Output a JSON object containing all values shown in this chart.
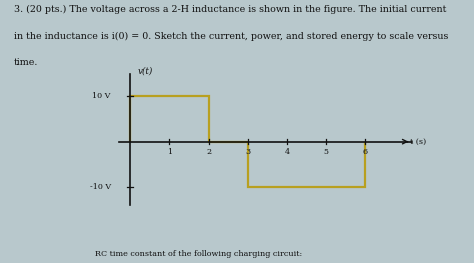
{
  "title_text_line1": "3. (20 pts.) The voltage across a 2-H inductance is shown in the figure. The initial current",
  "title_text_line2": "in the inductance is i(0) = 0. Sketch the current, power, and stored energy to scale versus",
  "title_text_line3": "time.",
  "ylabel": "v(t)",
  "xlabel": "t (s)",
  "x_ticks": [
    1,
    2,
    3,
    4,
    5,
    6
  ],
  "xlim": [
    -0.3,
    7.2
  ],
  "ylim": [
    -14,
    15
  ],
  "waveform_x": [
    0,
    0,
    2,
    2,
    3,
    3,
    6,
    6
  ],
  "waveform_y": [
    0,
    10,
    10,
    0,
    0,
    -10,
    -10,
    0
  ],
  "line_color": "#b8a020",
  "line_width": 1.6,
  "bg_color": "#b8c8cc",
  "text_color": "#111111",
  "font_size": 6.8,
  "bottom_text": "RC time constant of the following charging circuit:"
}
